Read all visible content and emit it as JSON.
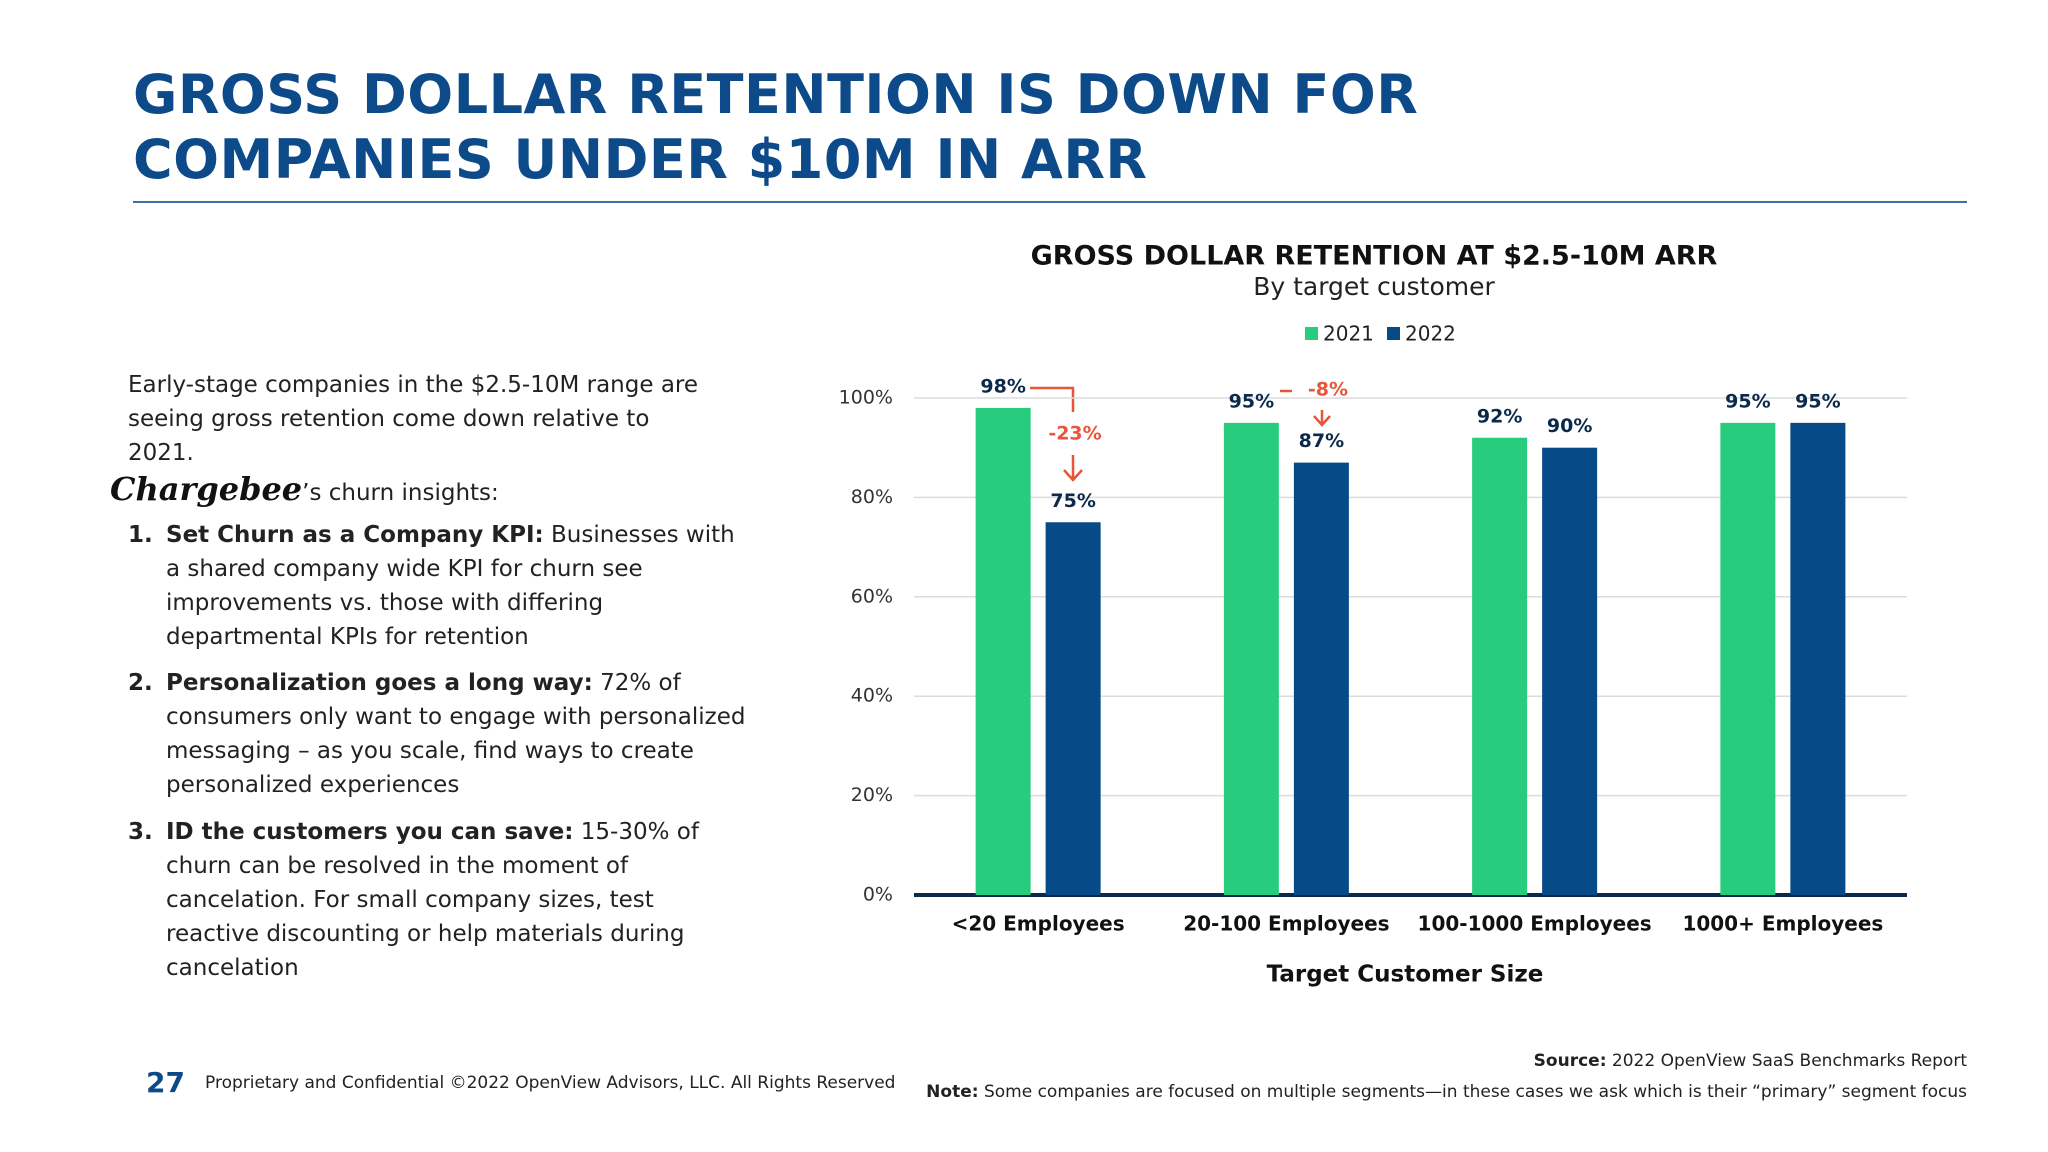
{
  "header": {
    "title_line1": "GROSS DOLLAR RETENTION IS DOWN FOR",
    "title_line2": "COMPANIES UNDER $10M IN ARR"
  },
  "intro": "Early-stage companies in the $2.5-10M range are seeing gross retention come down relative to 2021.",
  "insights_lead": {
    "brand": "Chargebee",
    "text": "’s churn insights:"
  },
  "insights": [
    {
      "number": "1.",
      "heading": "Set Churn as a Company KPI:",
      "text": "Businesses with a shared company wide KPI for churn see improvements vs. those with differing departmental KPIs for retention"
    },
    {
      "number": "2.",
      "heading": "Personalization goes a long way:",
      "text": "72% of consumers only want to engage with personalized messaging – as you scale, find ways to create personalized experiences"
    },
    {
      "number": "3.",
      "heading": "ID the customers you can save:",
      "text": "15-30% of churn can be resolved in the moment of cancelation. For small company sizes, test reactive discounting or help materials during cancelation"
    }
  ],
  "footer": {
    "page_number": "27",
    "confidential": "Proprietary and Confidential ©2022 OpenView Advisors, LLC. All Rights Reserved",
    "source_label": "Source:",
    "source": "2022 OpenView SaaS Benchmarks Report",
    "note_label": "Note:",
    "note": "Some companies are focused on multiple segments—in these cases we ask which is their “primary” segment focus"
  },
  "chart_data": {
    "type": "bar",
    "title": "GROSS DOLLAR RETENTION AT $2.5-10M ARR",
    "subtitle": "By target customer",
    "x_label": "Target Customer Size",
    "categories": [
      "<20 Employees",
      "20-100 Employees",
      "100-1000 Employees",
      "1000+ Employees"
    ],
    "series": [
      {
        "name": "2021",
        "color": "#27cc7c",
        "values": [
          98,
          95,
          92,
          95
        ],
        "value_labels": [
          "98%",
          "95%",
          "92%",
          "95%"
        ]
      },
      {
        "name": "2022",
        "color": "#064a87",
        "values": [
          75,
          87,
          90,
          95
        ],
        "value_labels": [
          "75%",
          "87%",
          "90%",
          "95%"
        ]
      }
    ],
    "annotations": [
      "-23%",
      "-8%"
    ],
    "ylim": [
      0,
      100
    ],
    "yticks": [
      {
        "value": 0,
        "label": "0%"
      },
      {
        "value": 20,
        "label": "20%"
      },
      {
        "value": 40,
        "label": "40%"
      },
      {
        "value": 60,
        "label": "60%"
      },
      {
        "value": 80,
        "label": "80%"
      },
      {
        "value": 100,
        "label": "100%"
      }
    ],
    "grid": true,
    "legend": "top"
  }
}
